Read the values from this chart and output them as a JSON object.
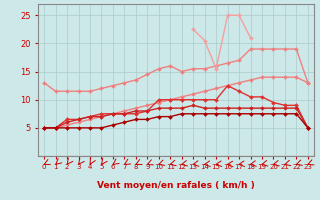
{
  "x": [
    0,
    1,
    2,
    3,
    4,
    5,
    6,
    7,
    8,
    9,
    10,
    11,
    12,
    13,
    14,
    15,
    16,
    17,
    18,
    19,
    20,
    21,
    22,
    23
  ],
  "series": [
    {
      "name": "light_pink_upper",
      "color": "#f08080",
      "linewidth": 1.0,
      "marker": "D",
      "markersize": 2.0,
      "values": [
        13.0,
        11.5,
        11.5,
        11.5,
        11.5,
        12.0,
        12.5,
        13.0,
        13.5,
        14.5,
        15.5,
        16.0,
        15.0,
        15.5,
        15.5,
        16.0,
        16.5,
        17.0,
        19.0,
        19.0,
        19.0,
        19.0,
        19.0,
        13.0
      ]
    },
    {
      "name": "light_pink_lower",
      "color": "#f08080",
      "linewidth": 1.0,
      "marker": "D",
      "markersize": 2.0,
      "values": [
        5.0,
        5.0,
        5.5,
        6.0,
        6.5,
        7.0,
        7.5,
        8.0,
        8.5,
        9.0,
        9.5,
        10.0,
        10.5,
        11.0,
        11.5,
        12.0,
        12.5,
        13.0,
        13.5,
        14.0,
        14.0,
        14.0,
        14.0,
        13.0
      ]
    },
    {
      "name": "pink_spike",
      "color": "#f4a0a0",
      "linewidth": 1.0,
      "marker": "D",
      "markersize": 2.0,
      "values": [
        null,
        null,
        null,
        null,
        null,
        null,
        null,
        null,
        null,
        null,
        null,
        null,
        null,
        22.5,
        20.5,
        15.5,
        25.0,
        25.0,
        21.0,
        null,
        null,
        null,
        null,
        null
      ]
    },
    {
      "name": "medium_red1",
      "color": "#e03030",
      "linewidth": 1.0,
      "marker": "D",
      "markersize": 2.0,
      "values": [
        5.0,
        5.0,
        6.5,
        6.5,
        7.0,
        7.5,
        7.5,
        7.5,
        7.5,
        8.0,
        10.0,
        10.0,
        10.0,
        10.0,
        10.0,
        10.0,
        12.5,
        11.5,
        10.5,
        10.5,
        9.5,
        9.0,
        9.0,
        5.0
      ]
    },
    {
      "name": "medium_red2",
      "color": "#cc2222",
      "linewidth": 1.0,
      "marker": "D",
      "markersize": 2.0,
      "values": [
        5.0,
        5.0,
        6.0,
        6.5,
        7.0,
        7.0,
        7.5,
        7.5,
        8.0,
        8.0,
        8.5,
        8.5,
        8.5,
        9.0,
        8.5,
        8.5,
        8.5,
        8.5,
        8.5,
        8.5,
        8.5,
        8.5,
        8.5,
        5.0
      ]
    },
    {
      "name": "dark_red",
      "color": "#aa0000",
      "linewidth": 1.0,
      "marker": "D",
      "markersize": 2.0,
      "values": [
        5.0,
        5.0,
        5.0,
        5.0,
        5.0,
        5.0,
        5.5,
        6.0,
        6.5,
        6.5,
        7.0,
        7.0,
        7.5,
        7.5,
        7.5,
        7.5,
        7.5,
        7.5,
        7.5,
        7.5,
        7.5,
        7.5,
        7.5,
        5.0
      ]
    }
  ],
  "arrow_angles": [
    225,
    210,
    200,
    200,
    195,
    200,
    215,
    220,
    225,
    230,
    235,
    240,
    245,
    250,
    255,
    255,
    260,
    255,
    250,
    245,
    245,
    240,
    235,
    230
  ],
  "xlabel": "Vent moyen/en rafales ( km/h )",
  "ylim": [
    0,
    27
  ],
  "xlim": [
    -0.5,
    23.5
  ],
  "yticks": [
    5,
    10,
    15,
    20,
    25
  ],
  "xticks": [
    0,
    1,
    2,
    3,
    4,
    5,
    6,
    7,
    8,
    9,
    10,
    11,
    12,
    13,
    14,
    15,
    16,
    17,
    18,
    19,
    20,
    21,
    22,
    23
  ],
  "bg_color": "#cce8e8",
  "grid_color": "#aacccc",
  "tick_color": "#cc0000",
  "label_color": "#cc0000",
  "spine_color": "#888888",
  "arrow_color": "#cc0000"
}
